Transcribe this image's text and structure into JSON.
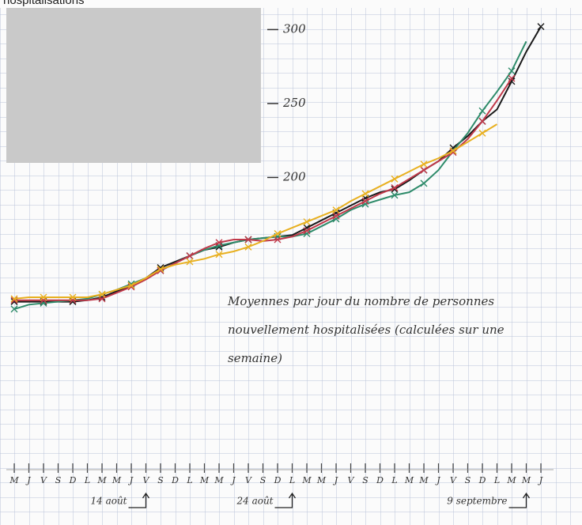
{
  "chart_data": {
    "type": "line",
    "title": "hospitalisations",
    "annotation": [
      "Moyennes par jour du nombre de personnes",
      "nouvellement hospitalisées (calculées sur une",
      "semaine)"
    ],
    "categories": [
      "M",
      "J",
      "V",
      "S",
      "D",
      "L",
      "M",
      "M",
      "J",
      "V",
      "S",
      "D",
      "L",
      "M",
      "M",
      "J",
      "V",
      "S",
      "D",
      "L",
      "M",
      "M",
      "J",
      "V",
      "S",
      "D",
      "L",
      "M",
      "M",
      "J",
      "V",
      "S",
      "D",
      "L",
      "M",
      "M",
      "J"
    ],
    "date_markers": [
      {
        "index": 9,
        "label": "14 août"
      },
      {
        "index": 19,
        "label": "24 août"
      },
      {
        "index": 35,
        "label": "9 septembre"
      }
    ],
    "ylim": [
      -35,
      320
    ],
    "yticks": [
      200,
      250,
      300
    ],
    "grid": true,
    "series": [
      {
        "color": "#1a1a1a",
        "values": [
          116,
          116,
          116,
          116,
          116,
          117,
          119,
          123,
          127,
          132,
          139,
          143,
          147,
          151,
          153,
          156,
          158,
          159,
          160,
          161,
          166,
          171,
          176,
          181,
          186,
          190,
          192,
          198,
          205,
          211,
          220,
          228,
          238,
          246,
          265,
          285,
          302
        ]
      },
      {
        "color": "#2e8b6a",
        "values": [
          111,
          114,
          115,
          116,
          117,
          118,
          121,
          124,
          128,
          132,
          137,
          142,
          147,
          151,
          154,
          156,
          158,
          159,
          160,
          160,
          162,
          167,
          172,
          178,
          182,
          185,
          188,
          190,
          196,
          205,
          218,
          230,
          245,
          258,
          272,
          292,
          null
        ]
      },
      {
        "color": "#c0394a",
        "values": [
          117,
          117,
          117,
          117,
          117,
          117,
          118,
          122,
          126,
          131,
          137,
          142,
          147,
          152,
          156,
          158,
          158,
          157,
          158,
          160,
          164,
          169,
          174,
          179,
          184,
          189,
          193,
          199,
          205,
          211,
          217,
          226,
          238,
          252,
          267,
          null,
          null
        ]
      },
      {
        "color": "#e8b020",
        "values": [
          118,
          119,
          119,
          119,
          119,
          119,
          121,
          124,
          127,
          132,
          138,
          141,
          143,
          145,
          148,
          150,
          153,
          157,
          162,
          166,
          170,
          174,
          178,
          184,
          189,
          194,
          199,
          204,
          209,
          213,
          218,
          224,
          230,
          236,
          null,
          null,
          null
        ]
      }
    ]
  }
}
